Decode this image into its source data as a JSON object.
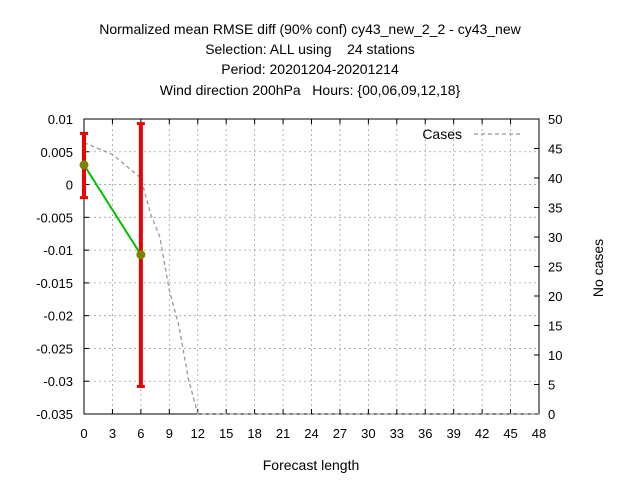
{
  "chart_data": {
    "type": "line",
    "title_lines": [
      "Normalized mean RMSE diff (90% conf) cy43_new_2_2 - cy43_new",
      "Selection: ALL using    24 stations",
      "Period: 20201204-20201214",
      "Wind direction 200hPa   Hours: {00,06,09,12,18}"
    ],
    "xlabel": "Forecast length",
    "ylabel": "",
    "y2label": "No cases",
    "xlim": [
      0,
      48
    ],
    "ylim": [
      -0.035,
      0.01
    ],
    "y2lim": [
      0,
      50
    ],
    "x_ticks": [
      0,
      3,
      6,
      9,
      12,
      15,
      18,
      21,
      24,
      27,
      30,
      33,
      36,
      39,
      42,
      45,
      48
    ],
    "y_ticks": [
      0.01,
      0.005,
      0,
      -0.005,
      -0.01,
      -0.015,
      -0.02,
      -0.025,
      -0.03,
      -0.035
    ],
    "y_tick_labels": [
      "0.01",
      "0.005",
      "0",
      "-0.005",
      "-0.01",
      "-0.015",
      "-0.02",
      "-0.025",
      "-0.03",
      "-0.035"
    ],
    "y2_ticks": [
      0,
      5,
      10,
      15,
      20,
      25,
      30,
      35,
      40,
      45,
      50
    ],
    "grid": true,
    "series": [
      {
        "kind": "mean-diff",
        "color": "#00c000",
        "points": [
          {
            "x": 0,
            "y": 0.003,
            "low": -0.002,
            "high": 0.0078
          },
          {
            "x": 6,
            "y": -0.0107,
            "low": -0.0308,
            "high": 0.0093
          }
        ]
      },
      {
        "name": "Cases",
        "kind": "cases",
        "axis": "y2",
        "color": "#999999",
        "x": [
          0,
          3,
          6,
          7,
          8,
          9,
          10,
          11,
          12,
          15,
          18,
          21,
          24,
          27,
          30,
          33,
          36,
          39,
          42,
          45,
          48
        ],
        "values": [
          46,
          44,
          40,
          34,
          30,
          21,
          15,
          6,
          0,
          0,
          0,
          0,
          0,
          0,
          0,
          0,
          0,
          0,
          0,
          0,
          0
        ]
      }
    ],
    "legend": {
      "position": "top-right",
      "entries": [
        "Cases"
      ]
    },
    "marker_color": "#808000",
    "errorbar_color": "#ee0000"
  }
}
